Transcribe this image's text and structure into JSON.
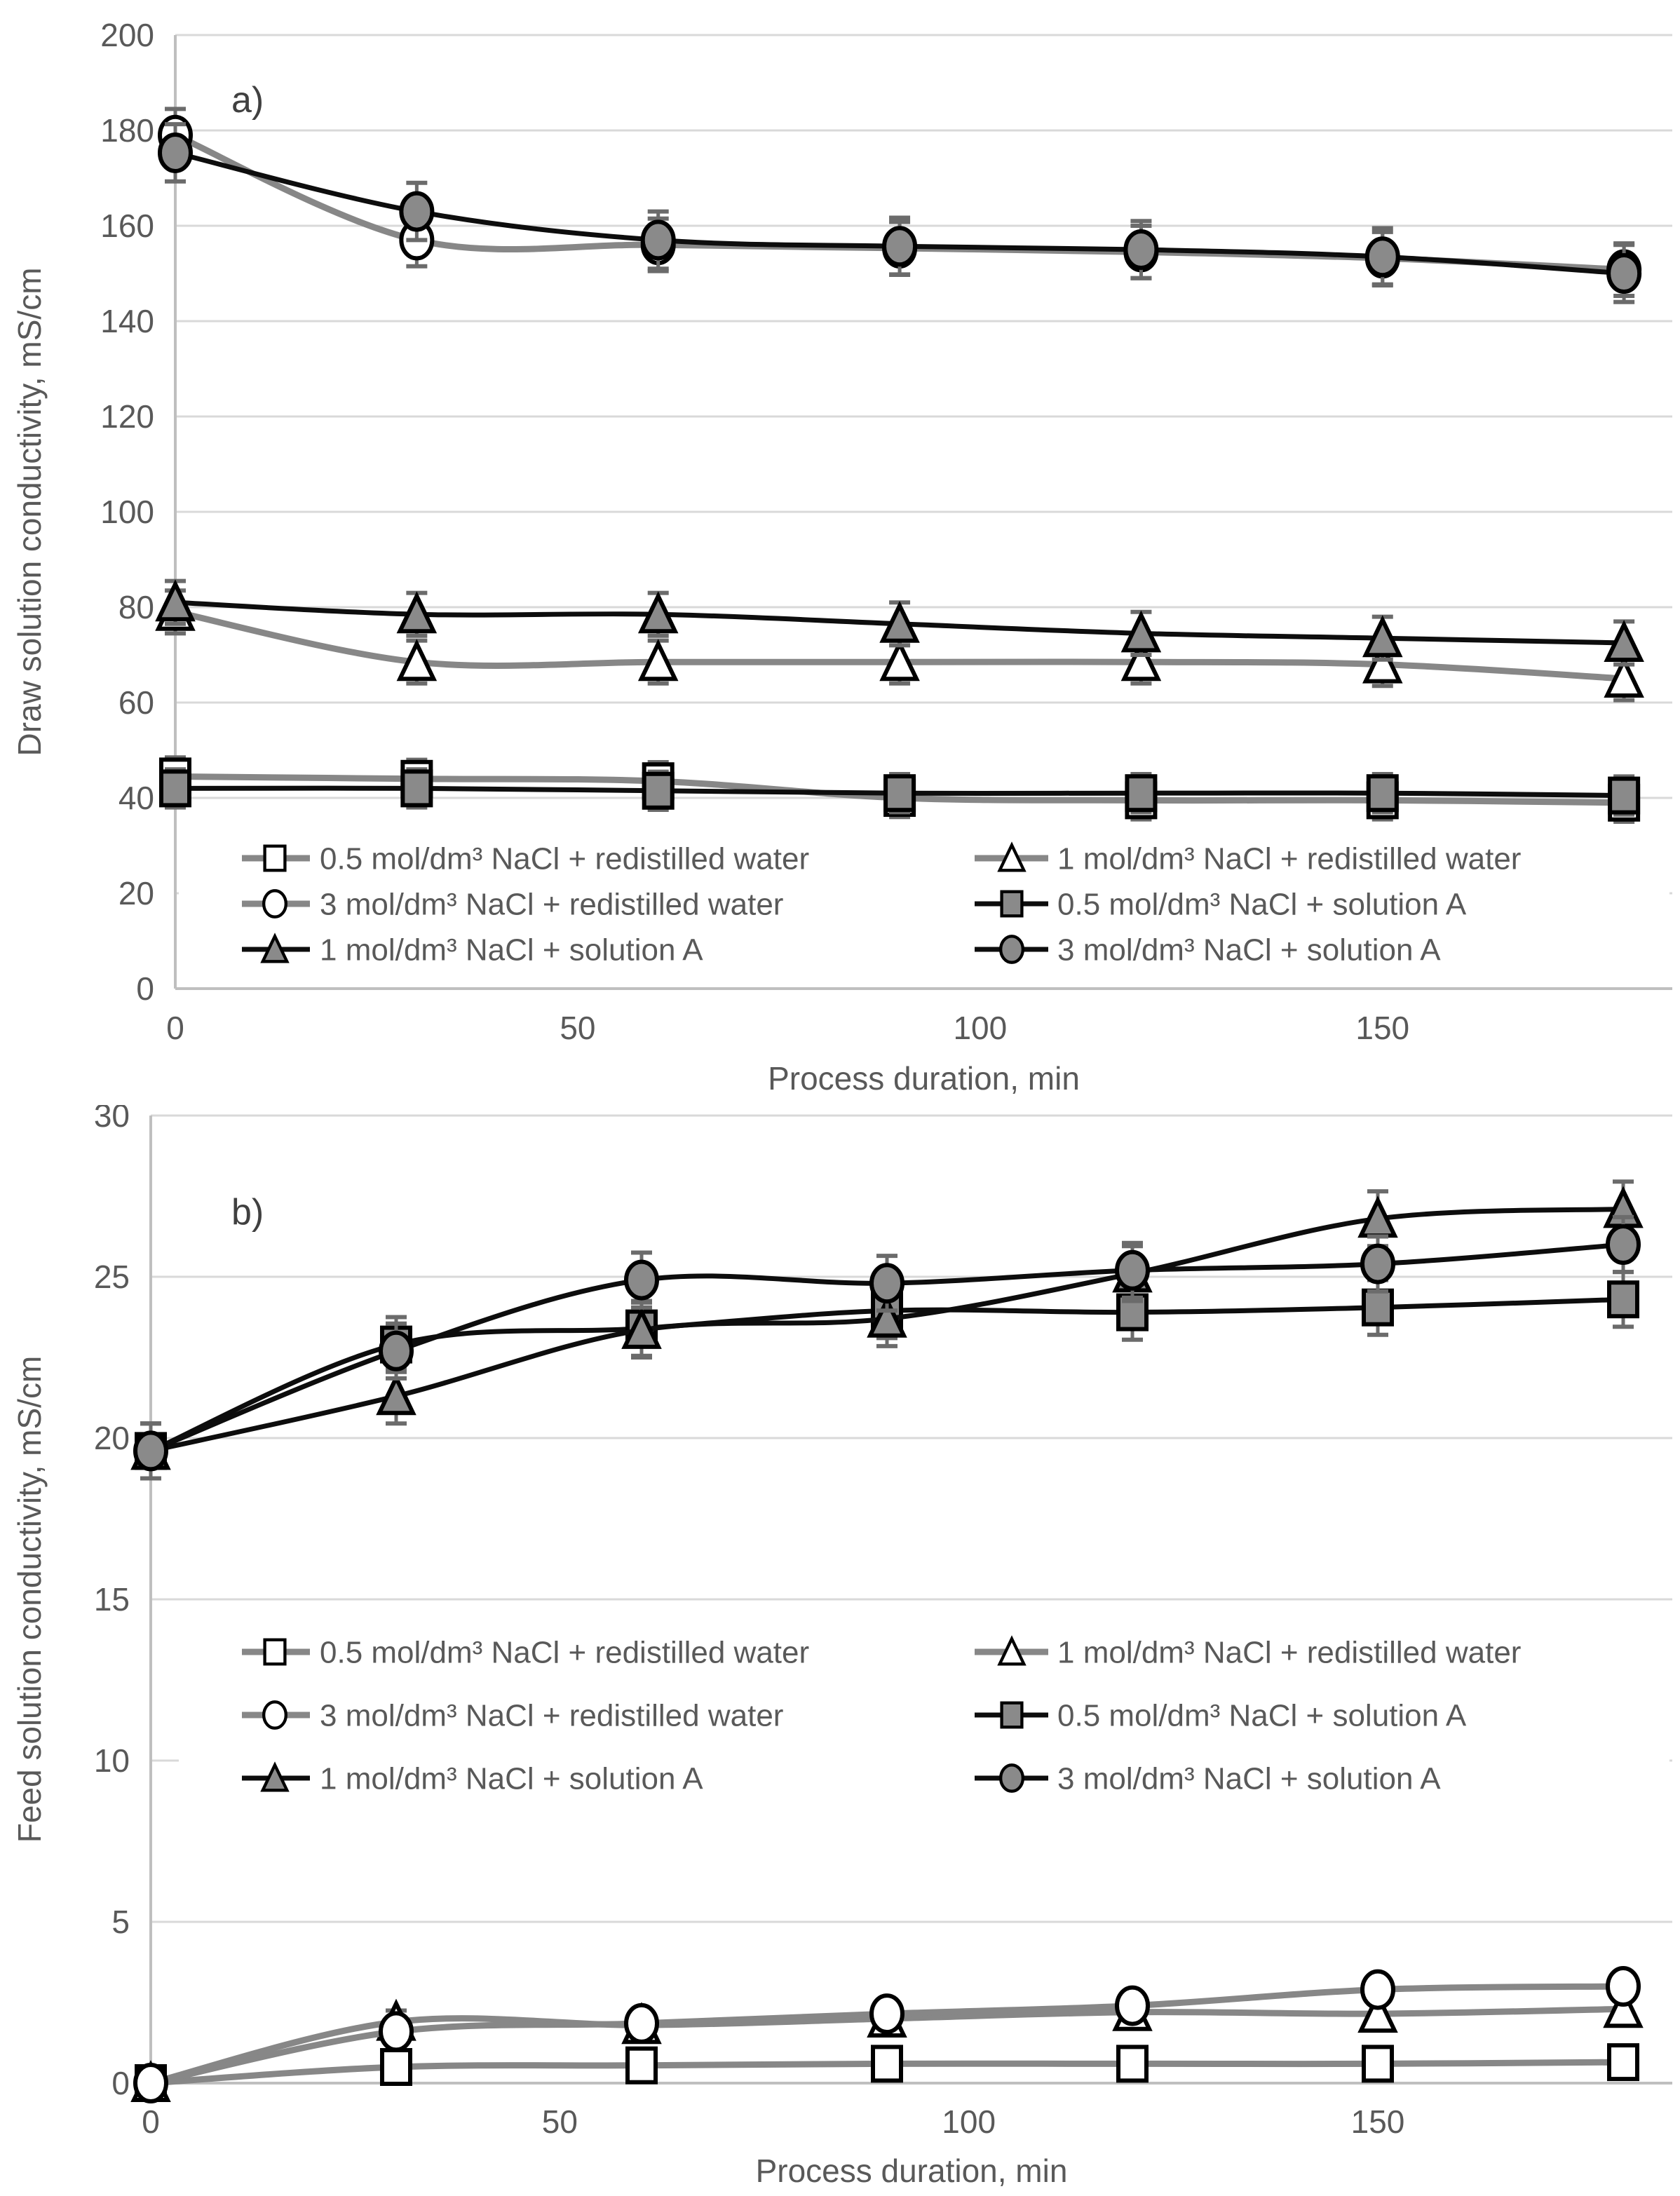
{
  "figure": {
    "panel_a_label": "a)",
    "panel_b_label": "b)",
    "x_axis_title": "Process duration, min"
  },
  "colors": {
    "grid": "#d9d9d9",
    "axis": "#bfbfbf",
    "text": "#595959",
    "panel_label_text": "#404040",
    "marker_gray": "#8a8a8a",
    "marker_white": "#ffffff",
    "marker_stroke": "#000000",
    "line_gray": "#878787",
    "line_black": "#0d0d0d",
    "error_bar": "#6b6b6b",
    "legend_background": "#ffffff"
  },
  "chart_data": [
    {
      "type": "line",
      "panel_label": "a)",
      "xlabel": "Process duration, min",
      "ylabel": "Draw solution conductivity, mS/cm",
      "xlim": [
        0,
        186
      ],
      "ylim": [
        0,
        200
      ],
      "xticks": [
        0,
        50,
        100,
        150
      ],
      "yticks": [
        0,
        20,
        40,
        60,
        80,
        100,
        120,
        140,
        160,
        180,
        200
      ],
      "grid": true,
      "legend_position": "inside-bottom",
      "x": [
        0,
        30,
        60,
        90,
        120,
        150,
        180
      ],
      "series": [
        {
          "name": "0.5 mol/dm³ NaCl + redistilled water",
          "marker": "square",
          "fill": "white",
          "line": "gray",
          "error": 4,
          "values": [
            44.5,
            44,
            43.5,
            40,
            39.5,
            39.5,
            39
          ]
        },
        {
          "name": "1 mol/dm³ NaCl + redistilled water",
          "marker": "triangle",
          "fill": "white",
          "line": "gray",
          "error": 4.5,
          "values": [
            79,
            68.5,
            68.5,
            68.5,
            68.5,
            68,
            65
          ]
        },
        {
          "name": "3 mol/dm³ NaCl + redistilled water",
          "marker": "circle",
          "fill": "white",
          "line": "gray",
          "error": 5.5,
          "values": [
            179,
            157,
            156,
            155.3,
            154.5,
            153.2,
            150.8
          ]
        },
        {
          "name": "0.5 mol/dm³ NaCl + solution A",
          "marker": "square",
          "fill": "gray",
          "line": "black",
          "error": 4,
          "values": [
            42,
            42,
            41.5,
            41,
            41,
            41,
            40.5
          ]
        },
        {
          "name": "1 mol/dm³ NaCl + solution A",
          "marker": "triangle",
          "fill": "gray",
          "line": "black",
          "error": 4.5,
          "values": [
            81,
            78.5,
            78.5,
            76.5,
            74.5,
            73.5,
            72.5
          ]
        },
        {
          "name": "3 mol/dm³ NaCl + solution A",
          "marker": "circle",
          "fill": "gray",
          "line": "black",
          "error": 6,
          "values": [
            175.3,
            163,
            157,
            155.7,
            155,
            153.5,
            150
          ]
        }
      ]
    },
    {
      "type": "line",
      "panel_label": "b)",
      "xlabel": "Process duration, min",
      "ylabel": "Feed solution conductivity, mS/cm",
      "xlim": [
        0,
        186
      ],
      "ylim": [
        0,
        30
      ],
      "xticks": [
        0,
        50,
        100,
        150
      ],
      "yticks": [
        0,
        5,
        10,
        15,
        20,
        25,
        30
      ],
      "grid": true,
      "legend_position": "inside-middle",
      "x": [
        0,
        30,
        60,
        90,
        120,
        150,
        180
      ],
      "series": [
        {
          "name": "0.5 mol/dm³ NaCl + redistilled water",
          "marker": "square",
          "fill": "white",
          "line": "gray",
          "error": 0.25,
          "values": [
            0,
            0.5,
            0.55,
            0.6,
            0.6,
            0.6,
            0.65
          ]
        },
        {
          "name": "1 mol/dm³ NaCl + redistilled water",
          "marker": "triangle",
          "fill": "white",
          "line": "gray",
          "error": 0.35,
          "values": [
            0,
            1.9,
            1.8,
            2.0,
            2.2,
            2.15,
            2.3
          ]
        },
        {
          "name": "3 mol/dm³ NaCl + redistilled water",
          "marker": "circle",
          "fill": "white",
          "line": "gray",
          "error": 0.35,
          "values": [
            0,
            1.6,
            1.85,
            2.15,
            2.4,
            2.9,
            3.0
          ]
        },
        {
          "name": "0.5 mol/dm³ NaCl + solution A",
          "marker": "square",
          "fill": "gray",
          "line": "black",
          "error": 0.85,
          "values": [
            19.6,
            22.9,
            23.4,
            23.95,
            23.9,
            24.05,
            24.3
          ]
        },
        {
          "name": "1 mol/dm³ NaCl + solution A",
          "marker": "triangle",
          "fill": "gray",
          "line": "black",
          "error": 0.85,
          "values": [
            19.6,
            21.3,
            23.35,
            23.7,
            25.1,
            26.8,
            27.1
          ]
        },
        {
          "name": "3 mol/dm³ NaCl + solution A",
          "marker": "circle",
          "fill": "gray",
          "line": "black",
          "error": 0.85,
          "values": [
            19.6,
            22.7,
            24.9,
            24.8,
            25.2,
            25.4,
            26.0
          ]
        }
      ]
    }
  ]
}
